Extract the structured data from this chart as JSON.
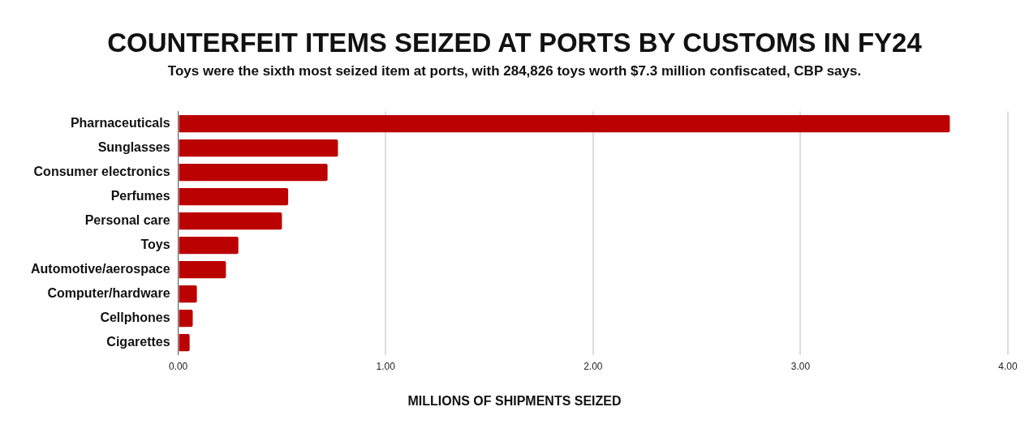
{
  "chart_data": {
    "type": "bar",
    "orientation": "horizontal",
    "title": "COUNTERFEIT ITEMS SEIZED AT PORTS BY CUSTOMS IN FY24",
    "subtitle": "Toys were the sixth most seized item at ports, with 284,826 toys worth $7.3 million confiscated, CBP says.",
    "xlabel": "MILLIONS OF SHIPMENTS SEIZED",
    "categories": [
      "Pharnaceuticals",
      "Sunglasses",
      "Consumer electronics",
      "Perfumes",
      "Personal care",
      "Toys",
      "Automotive/aerospace",
      "Computer/hardware",
      "Cellphones",
      "Cigarettes"
    ],
    "values": [
      3.72,
      0.77,
      0.72,
      0.53,
      0.5,
      0.29,
      0.23,
      0.09,
      0.07,
      0.055
    ],
    "color": "#bb0000",
    "xlim": [
      0,
      4
    ],
    "xticks": [
      {
        "value": 0,
        "label": "0.00"
      },
      {
        "value": 1,
        "label": "1.00"
      },
      {
        "value": 2,
        "label": "2.00"
      },
      {
        "value": 3,
        "label": "3.00"
      },
      {
        "value": 4,
        "label": "4.00"
      }
    ],
    "grid": "x"
  }
}
